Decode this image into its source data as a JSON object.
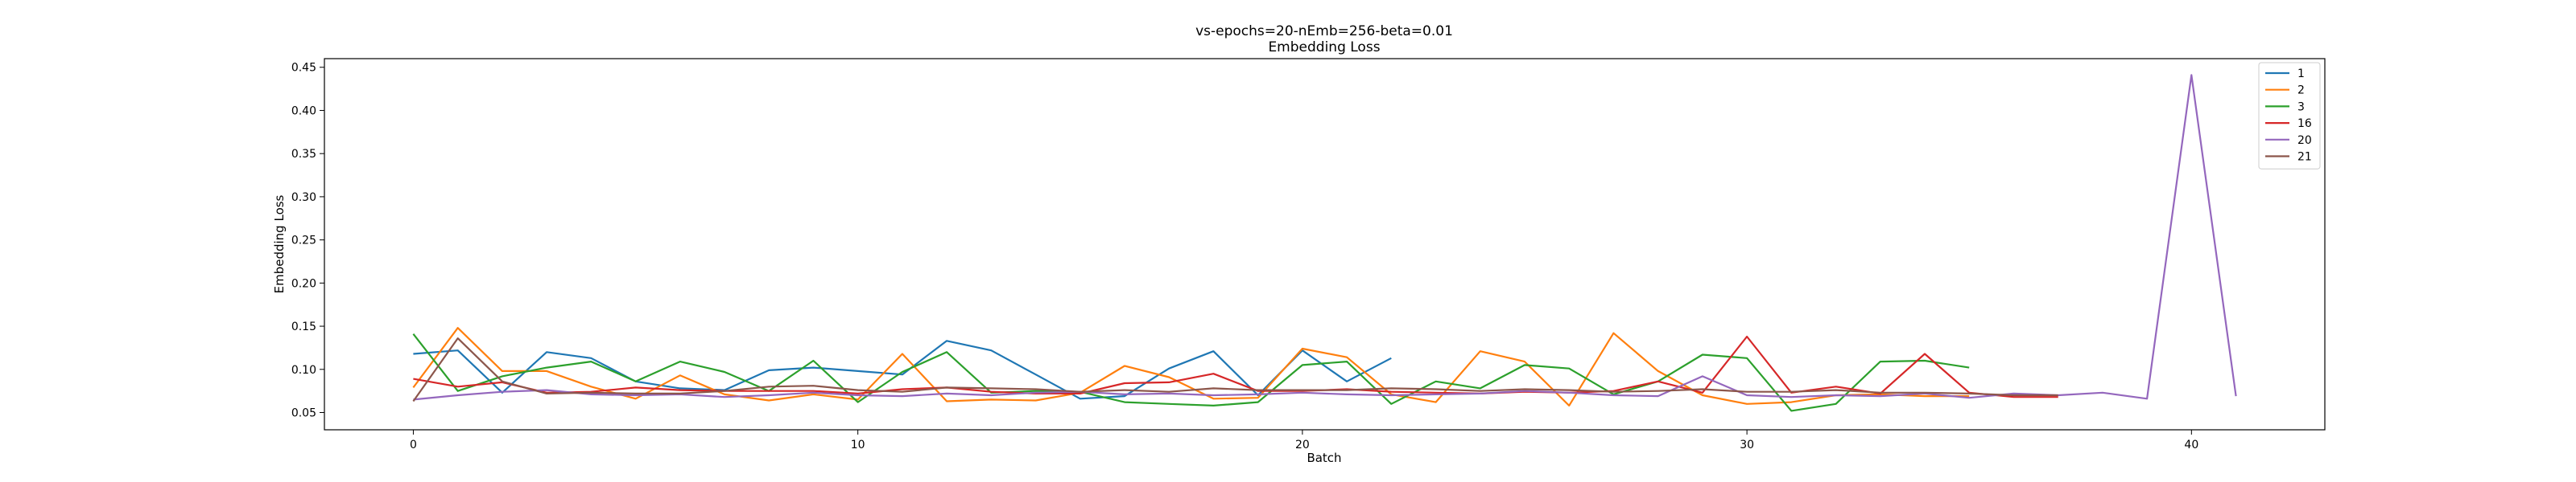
{
  "chart_data": {
    "type": "line",
    "title": "vs-epochs=20-nEmb=256-beta=0.01",
    "subtitle": "Embedding Loss",
    "xlabel": "Batch",
    "ylabel": "Embedding Loss",
    "xlim": [
      -2,
      43
    ],
    "ylim": [
      0.03,
      0.46
    ],
    "xticks": [
      0,
      10,
      20,
      30,
      40
    ],
    "yticks": [
      0.05,
      0.1,
      0.15,
      0.2,
      0.25,
      0.3,
      0.35,
      0.4,
      0.45
    ],
    "grid": false,
    "legend_position": "top-right",
    "series": [
      {
        "name": "1",
        "color": "#1f77b4",
        "x_start": 0,
        "values": [
          0.118,
          0.122,
          0.073,
          0.12,
          0.113,
          0.086,
          0.078,
          0.076,
          0.099,
          0.102,
          0.098,
          0.094,
          0.133,
          0.122,
          0.094,
          0.066,
          0.069,
          0.101,
          0.121,
          0.07,
          0.122,
          0.086,
          0.113
        ]
      },
      {
        "name": "2",
        "color": "#ff7f0e",
        "x_start": 0,
        "values": [
          0.079,
          0.148,
          0.098,
          0.098,
          0.08,
          0.066,
          0.093,
          0.071,
          0.064,
          0.071,
          0.065,
          0.118,
          0.063,
          0.065,
          0.064,
          0.073,
          0.104,
          0.091,
          0.066,
          0.067,
          0.124,
          0.114,
          0.071,
          0.062,
          0.121,
          0.109,
          0.058,
          0.142,
          0.098,
          0.07,
          0.06,
          0.062,
          0.07,
          0.071,
          0.069,
          0.069
        ]
      },
      {
        "name": "3",
        "color": "#2ca02c",
        "x_start": 0,
        "values": [
          0.141,
          0.075,
          0.092,
          0.102,
          0.109,
          0.086,
          0.109,
          0.097,
          0.075,
          0.11,
          0.062,
          0.097,
          0.12,
          0.073,
          0.075,
          0.074,
          0.062,
          0.06,
          0.058,
          0.062,
          0.105,
          0.109,
          0.06,
          0.086,
          0.078,
          0.105,
          0.101,
          0.071,
          0.086,
          0.117,
          0.113,
          0.052,
          0.06,
          0.109,
          0.11,
          0.102
        ]
      },
      {
        "name": "16",
        "color": "#d62728",
        "x_start": 0,
        "values": [
          0.089,
          0.08,
          0.085,
          0.073,
          0.074,
          0.079,
          0.076,
          0.075,
          0.075,
          0.075,
          0.072,
          0.077,
          0.079,
          0.074,
          0.072,
          0.072,
          0.084,
          0.085,
          0.095,
          0.075,
          0.075,
          0.077,
          0.074,
          0.073,
          0.072,
          0.074,
          0.073,
          0.075,
          0.086,
          0.073,
          0.138,
          0.073,
          0.08,
          0.072,
          0.118,
          0.073,
          0.068,
          0.068
        ]
      },
      {
        "name": "20",
        "color": "#9467bd",
        "x_start": 0,
        "values": [
          0.065,
          0.07,
          0.074,
          0.076,
          0.071,
          0.07,
          0.071,
          0.068,
          0.07,
          0.073,
          0.07,
          0.069,
          0.072,
          0.07,
          0.073,
          0.074,
          0.071,
          0.072,
          0.07,
          0.071,
          0.073,
          0.071,
          0.07,
          0.071,
          0.072,
          0.075,
          0.073,
          0.07,
          0.069,
          0.092,
          0.07,
          0.068,
          0.07,
          0.069,
          0.072,
          0.067,
          0.072,
          0.07,
          0.073,
          0.066,
          0.441,
          0.069
        ]
      },
      {
        "name": "21",
        "color": "#8c564b",
        "x_start": 0,
        "values": [
          0.063,
          0.136,
          0.086,
          0.072,
          0.073,
          0.072,
          0.072,
          0.075,
          0.08,
          0.081,
          0.076,
          0.074,
          0.079,
          0.078,
          0.077,
          0.074,
          0.076,
          0.074,
          0.078,
          0.076,
          0.076,
          0.076,
          0.078,
          0.077,
          0.075,
          0.077,
          0.076,
          0.074,
          0.075,
          0.077,
          0.074,
          0.074,
          0.076,
          0.073,
          0.073,
          0.072,
          0.07,
          0.07
        ]
      }
    ]
  }
}
